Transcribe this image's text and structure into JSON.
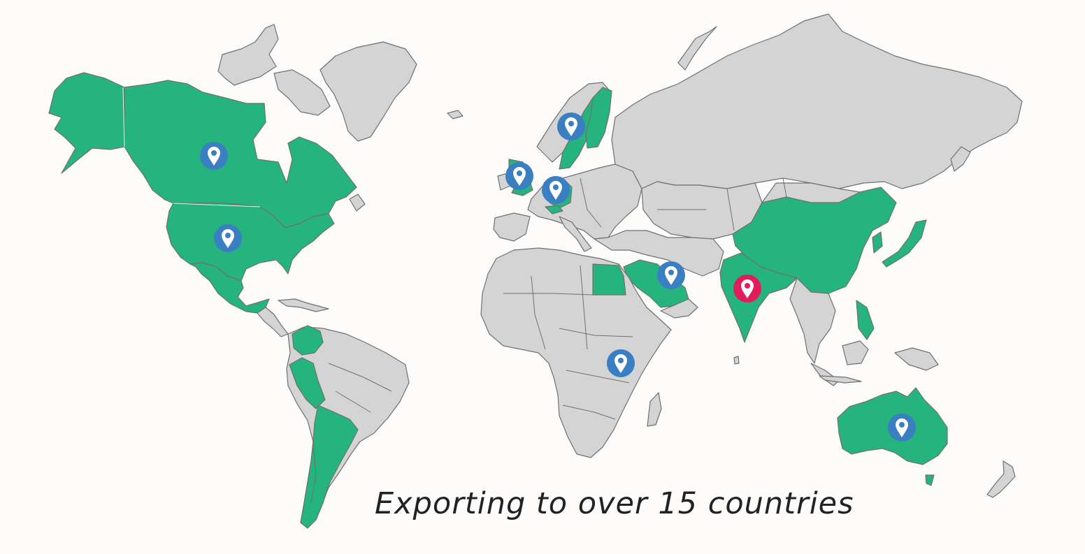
{
  "caption": "Exporting to over 15 countries",
  "colors": {
    "ocean": "#fdfcfb",
    "land": "#d3d4d3",
    "export_country": "#25b47e",
    "marker_export": "#3a7fc1",
    "marker_home": "#e21b5c"
  },
  "legend_icons": {
    "export_marker": "map-pin-icon",
    "home_marker": "map-pin-icon"
  },
  "markers": [
    {
      "id": "canada",
      "kind": "export"
    },
    {
      "id": "usa",
      "kind": "export"
    },
    {
      "id": "sweden",
      "kind": "export"
    },
    {
      "id": "uk",
      "kind": "export"
    },
    {
      "id": "germany",
      "kind": "export"
    },
    {
      "id": "saudi-arabia",
      "kind": "export"
    },
    {
      "id": "india",
      "kind": "home"
    },
    {
      "id": "kenya",
      "kind": "export"
    },
    {
      "id": "australia",
      "kind": "export"
    }
  ]
}
